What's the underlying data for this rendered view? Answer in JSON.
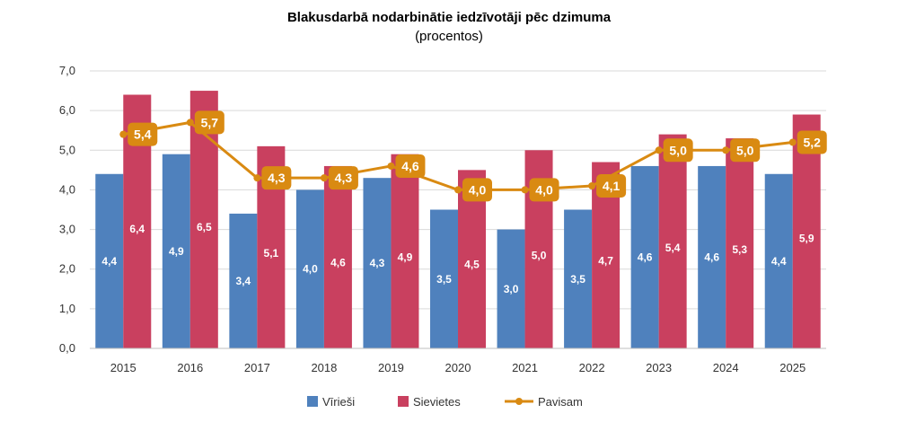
{
  "chart_data": {
    "type": "bar",
    "title": "Blakusdarbā nodarbinātie iedzīvotāji pēc dzimuma",
    "subtitle": "(procentos)",
    "categories": [
      "2015",
      "2016",
      "2017",
      "2018",
      "2019",
      "2020",
      "2021",
      "2022",
      "2023",
      "2024",
      "2025"
    ],
    "series": [
      {
        "name": "Vīrieši",
        "kind": "bar",
        "color": "#4f81bd",
        "values": [
          4.4,
          4.9,
          3.4,
          4.0,
          4.3,
          3.5,
          3.0,
          3.5,
          4.6,
          4.6,
          4.4
        ],
        "labels": [
          "4,4",
          "4,9",
          "3,4",
          "4,0",
          "4,3",
          "3,5",
          "3,0",
          "3,5",
          "4,6",
          "4,6",
          "4,4"
        ]
      },
      {
        "name": "Sievietes",
        "kind": "bar",
        "color": "#c9405f",
        "values": [
          6.4,
          6.5,
          5.1,
          4.6,
          4.9,
          4.5,
          5.0,
          4.7,
          5.4,
          5.3,
          5.9
        ],
        "labels": [
          "6,4",
          "6,5",
          "5,1",
          "4,6",
          "4,9",
          "4,5",
          "5,0",
          "4,7",
          "5,4",
          "5,3",
          "5,9"
        ]
      },
      {
        "name": "Pavisam",
        "kind": "line",
        "color": "#d98a12",
        "values": [
          5.4,
          5.7,
          4.3,
          4.3,
          4.6,
          4.0,
          4.0,
          4.1,
          5.0,
          5.0,
          5.2
        ],
        "labels": [
          "5,4",
          "5,7",
          "4,3",
          "4,3",
          "4,6",
          "4,0",
          "4,0",
          "4,1",
          "5,0",
          "5,0",
          "5,2"
        ]
      }
    ],
    "ylim": [
      0,
      7
    ],
    "yticks": [
      "0,0",
      "1,0",
      "2,0",
      "3,0",
      "4,0",
      "5,0",
      "6,0",
      "7,0"
    ],
    "grid": true,
    "legend": "bottom-center"
  }
}
